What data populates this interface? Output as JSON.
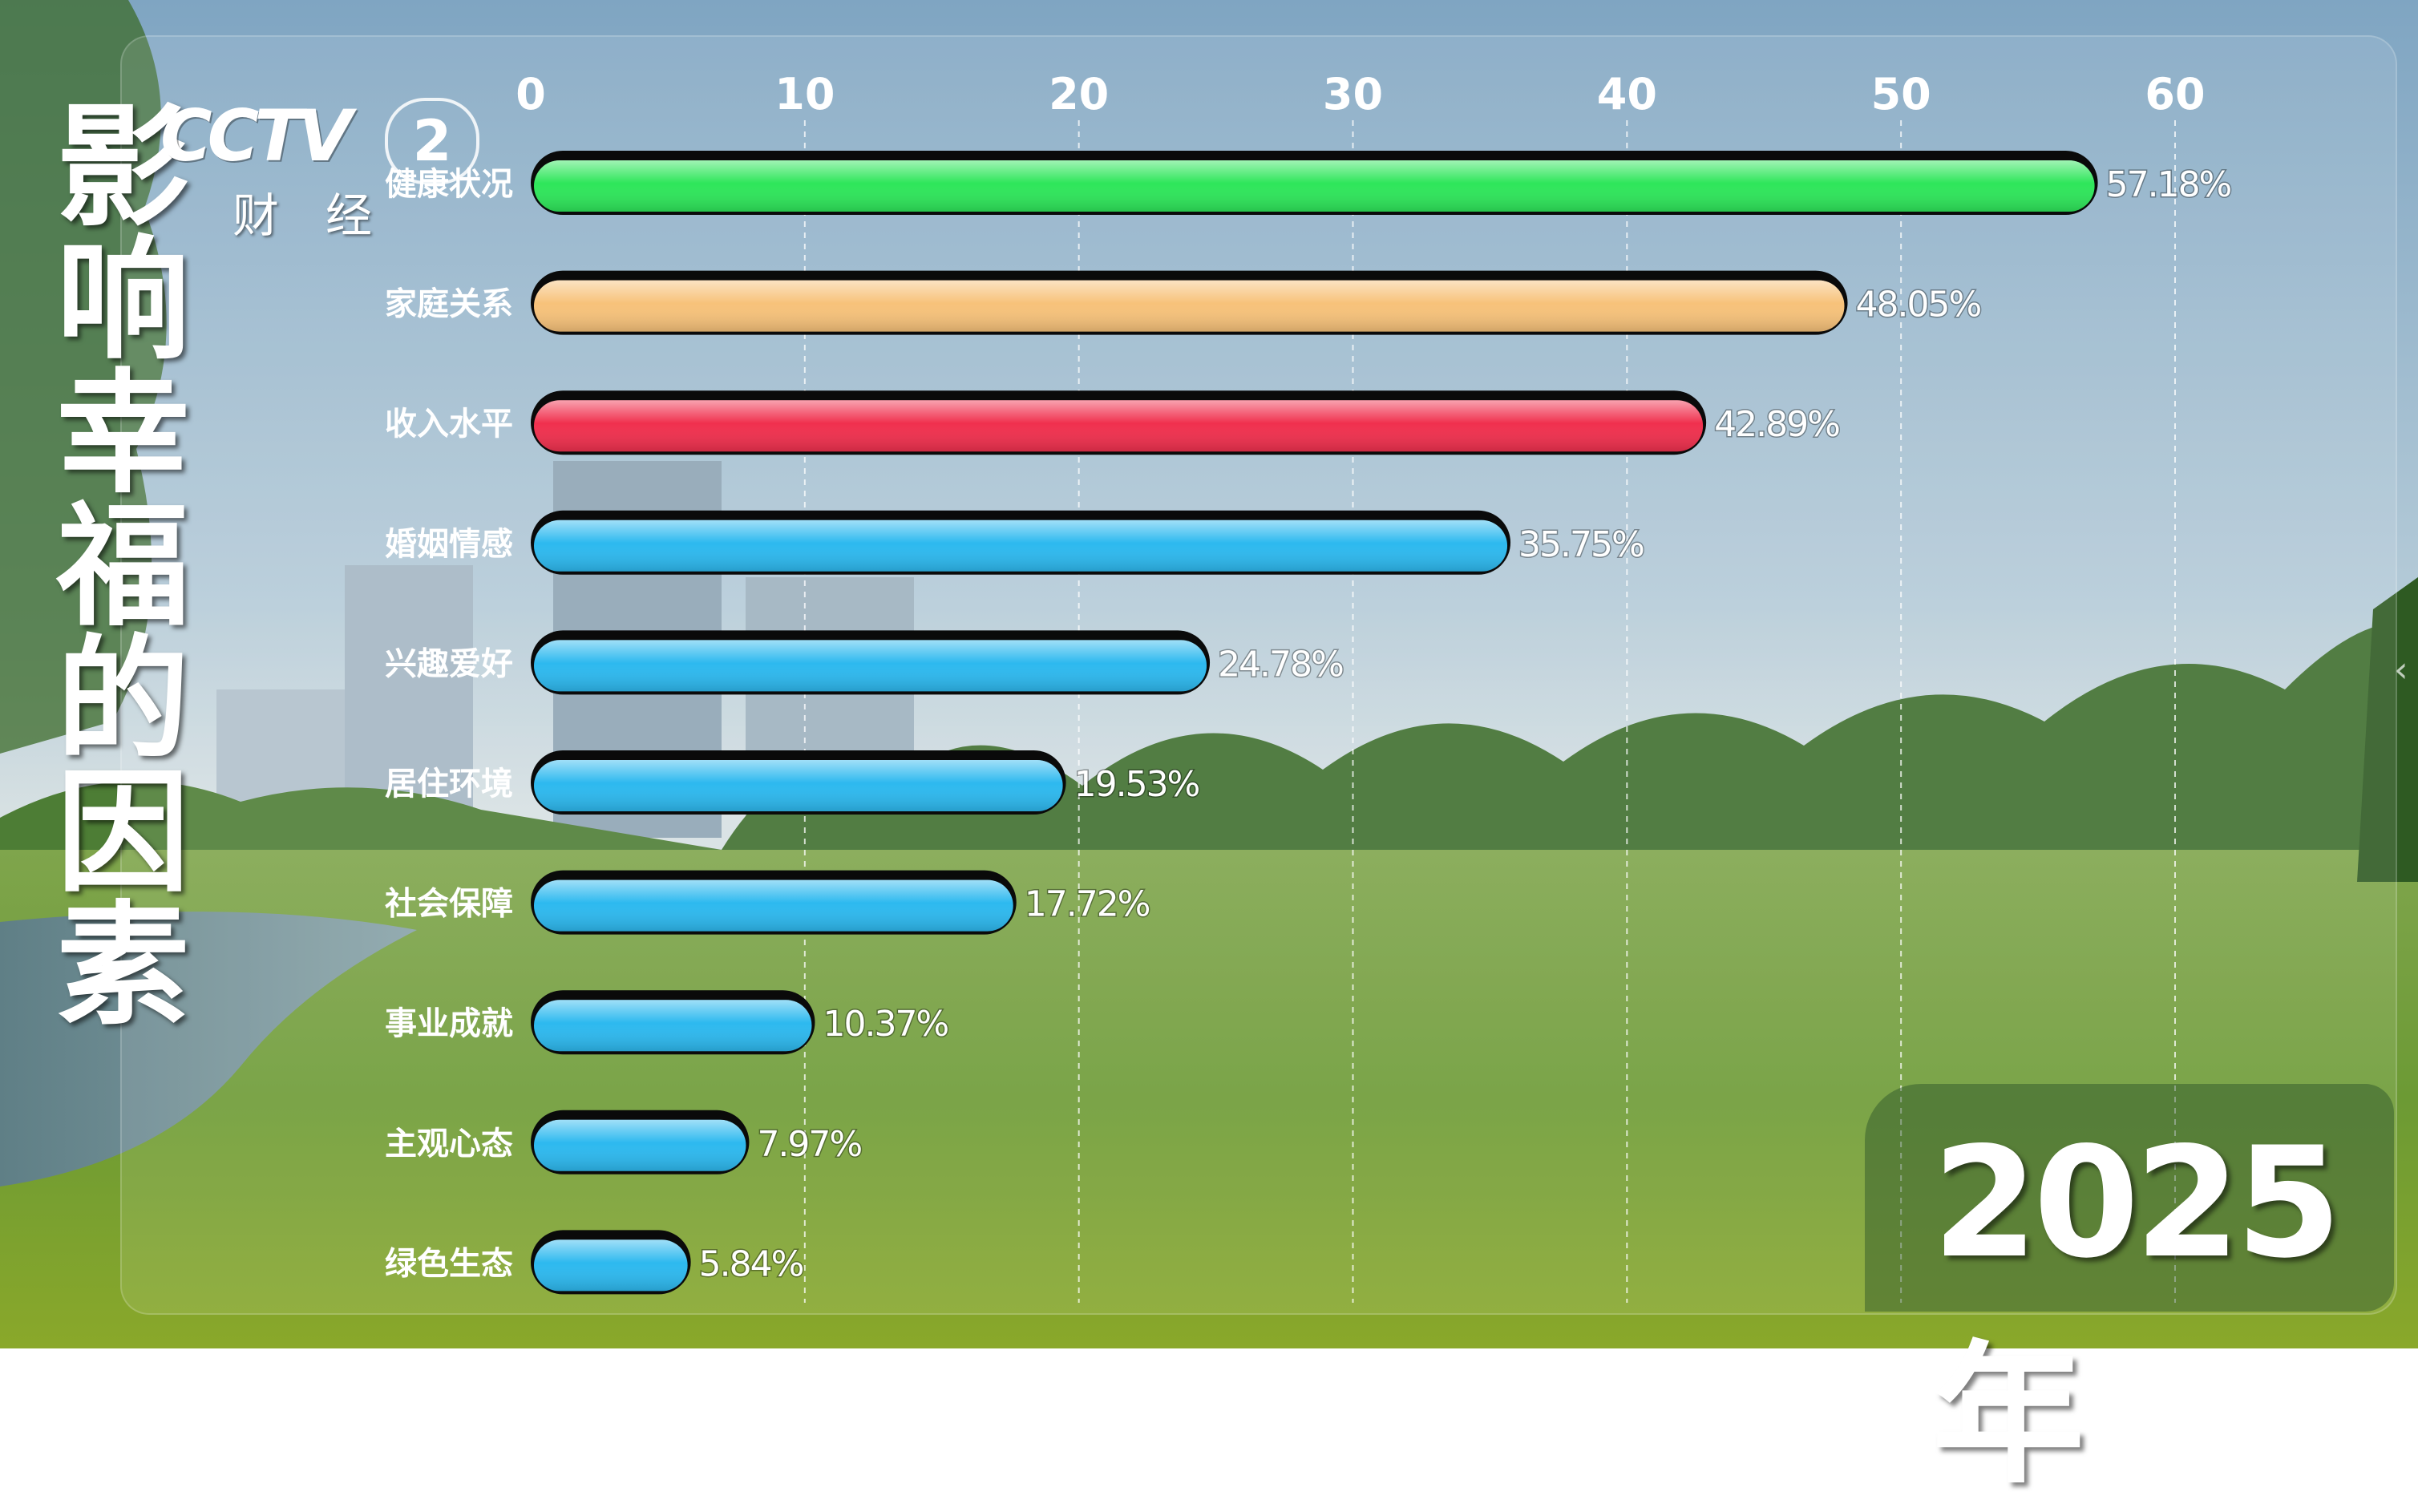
{
  "title": "影响幸福的因素",
  "logo": {
    "brand": "CCTV",
    "channel": "2",
    "subtitle": "财经"
  },
  "year": "2025年",
  "colors": {
    "green": "#2ee65a",
    "orange": "#f7c27a",
    "red": "#f0304e",
    "blue": "#2db9ef"
  },
  "icons": {
    "side_arrow": "chevron-left-icon"
  },
  "chart_data": {
    "type": "bar",
    "orientation": "horizontal",
    "xlim": [
      0,
      60
    ],
    "ticks": [
      0,
      10,
      20,
      30,
      40,
      50,
      60
    ],
    "grid": true,
    "categories": [
      "健康状况",
      "家庭关系",
      "收入水平",
      "婚姻情感",
      "兴趣爱好",
      "居住环境",
      "社会保障",
      "事业成就",
      "主观心态",
      "绿色生态"
    ],
    "values": [
      57.18,
      48.05,
      42.89,
      35.75,
      24.78,
      19.53,
      17.72,
      10.37,
      7.97,
      5.84
    ],
    "labels": [
      "57.18%",
      "48.05%",
      "42.89%",
      "35.75%",
      "24.78%",
      "19.53%",
      "17.72%",
      "10.37%",
      "7.97%",
      "5.84%"
    ],
    "bar_colors": [
      "#2ee65a",
      "#f7c27a",
      "#f0304e",
      "#2db9ef",
      "#2db9ef",
      "#2db9ef",
      "#2db9ef",
      "#2db9ef",
      "#2db9ef",
      "#2db9ef"
    ]
  }
}
